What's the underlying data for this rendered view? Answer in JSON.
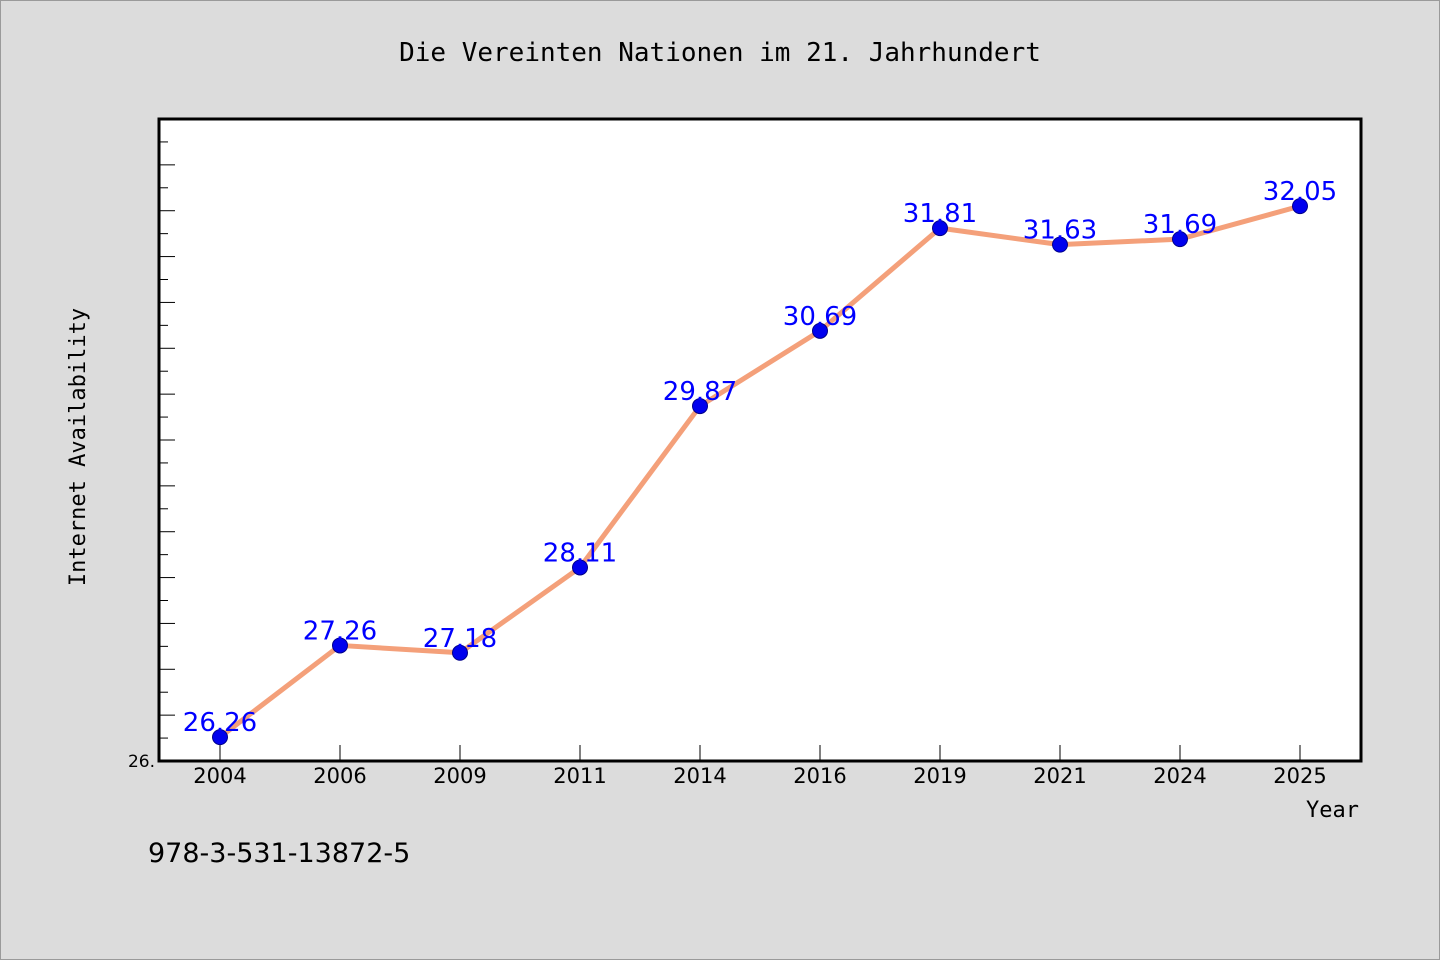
{
  "chart_data": {
    "type": "line",
    "title": "Die Vereinten Nationen im 21. Jahrhundert",
    "xlabel": "Year",
    "ylabel": "Internet Availability",
    "categories": [
      "2004",
      "2006",
      "2009",
      "2011",
      "2014",
      "2016",
      "2019",
      "2021",
      "2024",
      "2025"
    ],
    "values": [
      26.26,
      27.26,
      27.18,
      28.11,
      29.87,
      30.69,
      31.81,
      31.63,
      31.69,
      32.05
    ],
    "data_labels": [
      "26.26",
      "27.26",
      "27.18",
      "28.11",
      "29.87",
      "30.69",
      "31.81",
      "31.63",
      "31.69",
      "32.05"
    ],
    "ylim": [
      26.0,
      33.0
    ],
    "y_tick_label": "26.",
    "grid": false,
    "line_color": "#f4a07a",
    "marker_color": "#0000ee",
    "label_color": "#0000ff"
  },
  "footer": {
    "isbn": "978-3-531-13872-5"
  }
}
